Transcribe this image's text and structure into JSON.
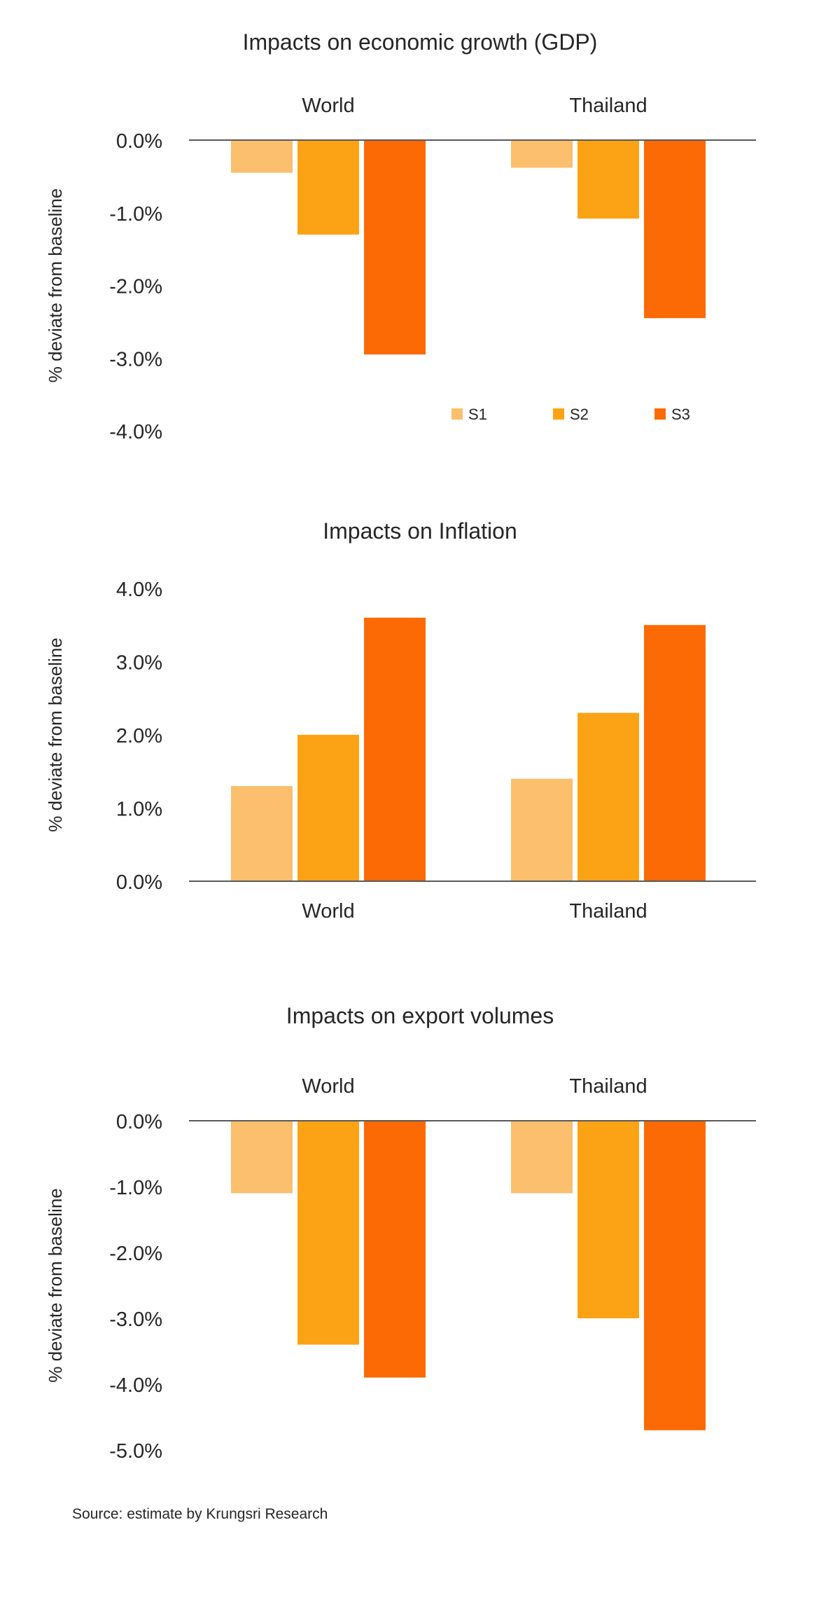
{
  "colors": {
    "S1": "#FBBF6D",
    "S2": "#FBA315",
    "S3": "#FB6A05",
    "axis": "#595959"
  },
  "source": "Source: estimate by Krungsri Research",
  "chart_data": [
    {
      "type": "bar",
      "title": "Impacts on economic growth (GDP)",
      "categories": [
        "World",
        "Thailand"
      ],
      "category_label_position": "top",
      "ylabel": "% deviate from baseline",
      "ylim": [
        -4.0,
        0.0
      ],
      "yticks": [
        0.0,
        -1.0,
        -2.0,
        -3.0,
        -4.0
      ],
      "ytick_labels": [
        "0.0%",
        "-1.0%",
        "-2.0%",
        "-3.0%",
        "-4.0%"
      ],
      "series": [
        {
          "name": "S1",
          "values": [
            -0.45,
            -0.38
          ]
        },
        {
          "name": "S2",
          "values": [
            -1.3,
            -1.08
          ]
        },
        {
          "name": "S3",
          "values": [
            -2.95,
            -2.45
          ]
        }
      ],
      "legend": "bottom-right",
      "grid": false
    },
    {
      "type": "bar",
      "title": "Impacts on Inflation",
      "categories": [
        "World",
        "Thailand"
      ],
      "category_label_position": "bottom",
      "ylabel": "% deviate from baseline",
      "ylim": [
        0.0,
        4.0
      ],
      "yticks": [
        4.0,
        3.0,
        2.0,
        1.0,
        0.0
      ],
      "ytick_labels": [
        "4.0%",
        "3.0%",
        "2.0%",
        "1.0%",
        "0.0%"
      ],
      "series": [
        {
          "name": "S1",
          "values": [
            1.3,
            1.4
          ]
        },
        {
          "name": "S2",
          "values": [
            2.0,
            2.3
          ]
        },
        {
          "name": "S3",
          "values": [
            3.6,
            3.5
          ]
        }
      ],
      "grid": false
    },
    {
      "type": "bar",
      "title": "Impacts on export volumes",
      "categories": [
        "World",
        "Thailand"
      ],
      "category_label_position": "top",
      "ylabel": "% deviate from baseline",
      "ylim": [
        -5.0,
        0.0
      ],
      "yticks": [
        0.0,
        -1.0,
        -2.0,
        -3.0,
        -4.0,
        -5.0
      ],
      "ytick_labels": [
        "0.0%",
        "-1.0%",
        "-2.0%",
        "-3.0%",
        "-4.0%",
        "-5.0%"
      ],
      "series": [
        {
          "name": "S1",
          "values": [
            -1.1,
            -1.1
          ]
        },
        {
          "name": "S2",
          "values": [
            -3.4,
            -3.0
          ]
        },
        {
          "name": "S3",
          "values": [
            -3.9,
            -4.7
          ]
        }
      ],
      "grid": false
    }
  ]
}
